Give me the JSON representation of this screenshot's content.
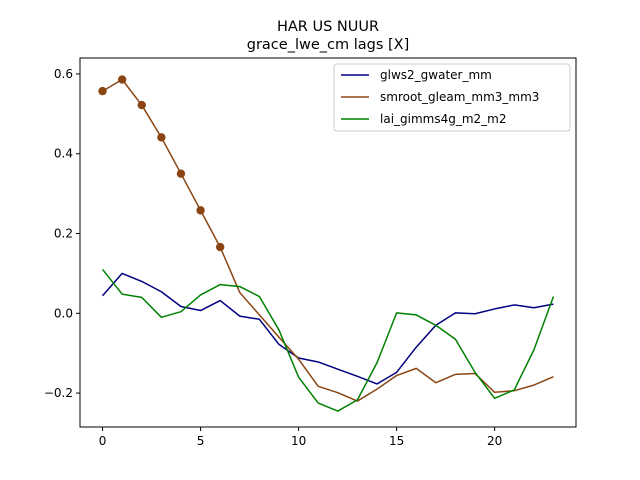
{
  "chart_data": {
    "type": "line",
    "title": "HAR US NUUR",
    "subtitle": "grace_lwe_cm lags [X]",
    "xlabel": "",
    "ylabel": "",
    "xlim": [
      -1.15,
      24.15
    ],
    "ylim": [
      -0.285,
      0.64
    ],
    "xticks": [
      0,
      5,
      10,
      15,
      20
    ],
    "xtick_labels": [
      "0",
      "5",
      "10",
      "15",
      "20"
    ],
    "yticks": [
      -0.2,
      0.0,
      0.2,
      0.4,
      0.6
    ],
    "ytick_labels": [
      "−0.2",
      "0.0",
      "0.2",
      "0.4",
      "0.6"
    ],
    "grid": false,
    "legend_position": "top-right",
    "x": [
      0,
      1,
      2,
      3,
      4,
      5,
      6,
      7,
      8,
      9,
      10,
      11,
      12,
      13,
      14,
      15,
      16,
      17,
      18,
      19,
      20,
      21,
      22,
      23
    ],
    "series": [
      {
        "name": "glws2_gwater_mm",
        "color": "#000080",
        "values": [
          0.044,
          0.1,
          0.08,
          0.054,
          0.017,
          0.007,
          0.032,
          -0.007,
          -0.015,
          -0.078,
          -0.112,
          -0.122,
          -0.14,
          -0.158,
          -0.177,
          -0.148,
          -0.085,
          -0.03,
          0.001,
          -0.001,
          0.011,
          0.021,
          0.014,
          0.023
        ]
      },
      {
        "name": "smroot_gleam_mm3_mm3",
        "color": "#8B4513",
        "values": [
          0.557,
          0.586,
          0.522,
          0.441,
          0.35,
          0.258,
          0.166,
          0.052,
          -0.004,
          -0.06,
          -0.115,
          -0.183,
          -0.199,
          -0.22,
          -0.19,
          -0.156,
          -0.138,
          -0.174,
          -0.153,
          -0.151,
          -0.198,
          -0.194,
          -0.18,
          -0.159
        ],
        "markers": [
          0,
          1,
          2,
          3,
          4,
          5,
          6
        ]
      },
      {
        "name": "lai_gimms4g_m2_m2",
        "color": "#008000",
        "values": [
          0.11,
          0.048,
          0.04,
          -0.01,
          0.004,
          0.046,
          0.072,
          0.067,
          0.042,
          -0.042,
          -0.16,
          -0.225,
          -0.245,
          -0.217,
          -0.124,
          0.001,
          -0.004,
          -0.03,
          -0.065,
          -0.148,
          -0.213,
          -0.192,
          -0.092,
          0.042
        ]
      }
    ]
  }
}
